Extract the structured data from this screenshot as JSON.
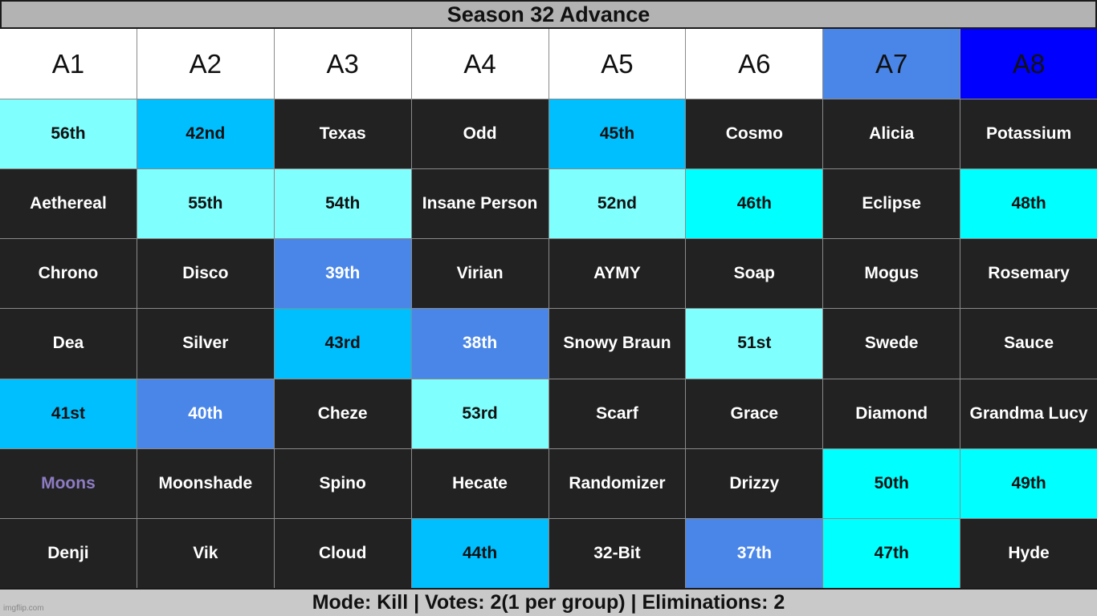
{
  "title": "Season 32 Advance",
  "columns": [
    {
      "label": "A1",
      "bg": "#ffffff"
    },
    {
      "label": "A2",
      "bg": "#ffffff"
    },
    {
      "label": "A3",
      "bg": "#ffffff"
    },
    {
      "label": "A4",
      "bg": "#ffffff"
    },
    {
      "label": "A5",
      "bg": "#ffffff"
    },
    {
      "label": "A6",
      "bg": "#ffffff"
    },
    {
      "label": "A7",
      "bg": "#4a86e8"
    },
    {
      "label": "A8",
      "bg": "#0000ff"
    }
  ],
  "rows": [
    [
      {
        "text": "56th",
        "style": "light"
      },
      {
        "text": "42nd",
        "style": "sky"
      },
      {
        "text": "Texas",
        "style": "dark"
      },
      {
        "text": "Odd",
        "style": "dark"
      },
      {
        "text": "45th",
        "style": "sky"
      },
      {
        "text": "Cosmo",
        "style": "dark"
      },
      {
        "text": "Alicia",
        "style": "dark"
      },
      {
        "text": "Potassium",
        "style": "dark"
      }
    ],
    [
      {
        "text": "Aethereal",
        "style": "dark"
      },
      {
        "text": "55th",
        "style": "light"
      },
      {
        "text": "54th",
        "style": "light"
      },
      {
        "text": "Insane Person",
        "style": "dark"
      },
      {
        "text": "52nd",
        "style": "light"
      },
      {
        "text": "46th",
        "style": "cyan"
      },
      {
        "text": "Eclipse",
        "style": "dark"
      },
      {
        "text": "48th",
        "style": "cyan"
      }
    ],
    [
      {
        "text": "Chrono",
        "style": "dark"
      },
      {
        "text": "Disco",
        "style": "dark"
      },
      {
        "text": "39th",
        "style": "blue"
      },
      {
        "text": "Virian",
        "style": "dark"
      },
      {
        "text": "AYMY",
        "style": "dark"
      },
      {
        "text": "Soap",
        "style": "dark"
      },
      {
        "text": "Mogus",
        "style": "dark"
      },
      {
        "text": "Rosemary",
        "style": "dark"
      }
    ],
    [
      {
        "text": "Dea",
        "style": "dark"
      },
      {
        "text": "Silver",
        "style": "dark"
      },
      {
        "text": "43rd",
        "style": "sky"
      },
      {
        "text": "38th",
        "style": "blue"
      },
      {
        "text": "Snowy Braun",
        "style": "dark"
      },
      {
        "text": "51st",
        "style": "light"
      },
      {
        "text": "Swede",
        "style": "dark"
      },
      {
        "text": "Sauce",
        "style": "dark"
      }
    ],
    [
      {
        "text": "41st",
        "style": "sky"
      },
      {
        "text": "40th",
        "style": "blue"
      },
      {
        "text": "Cheze",
        "style": "dark"
      },
      {
        "text": "53rd",
        "style": "light"
      },
      {
        "text": "Scarf",
        "style": "dark"
      },
      {
        "text": "Grace",
        "style": "dark"
      },
      {
        "text": "Diamond",
        "style": "dark"
      },
      {
        "text": "Grandma Lucy",
        "style": "dark"
      }
    ],
    [
      {
        "text": "Moons",
        "style": "purple-text"
      },
      {
        "text": "Moonshade",
        "style": "dark"
      },
      {
        "text": "Spino",
        "style": "dark"
      },
      {
        "text": "Hecate",
        "style": "dark"
      },
      {
        "text": "Randomizer",
        "style": "dark"
      },
      {
        "text": "Drizzy",
        "style": "dark"
      },
      {
        "text": "50th",
        "style": "cyan"
      },
      {
        "text": "49th",
        "style": "cyan"
      }
    ],
    [
      {
        "text": "Denji",
        "style": "dark"
      },
      {
        "text": "Vik",
        "style": "dark"
      },
      {
        "text": "Cloud",
        "style": "dark"
      },
      {
        "text": "44th",
        "style": "sky"
      },
      {
        "text": "32-Bit",
        "style": "dark"
      },
      {
        "text": "37th",
        "style": "blue"
      },
      {
        "text": "47th",
        "style": "cyan"
      },
      {
        "text": "Hyde",
        "style": "dark"
      }
    ]
  ],
  "footer": "Mode: Kill | Votes: 2(1 per group) | Eliminations: 2",
  "watermark": "imgflip.com"
}
